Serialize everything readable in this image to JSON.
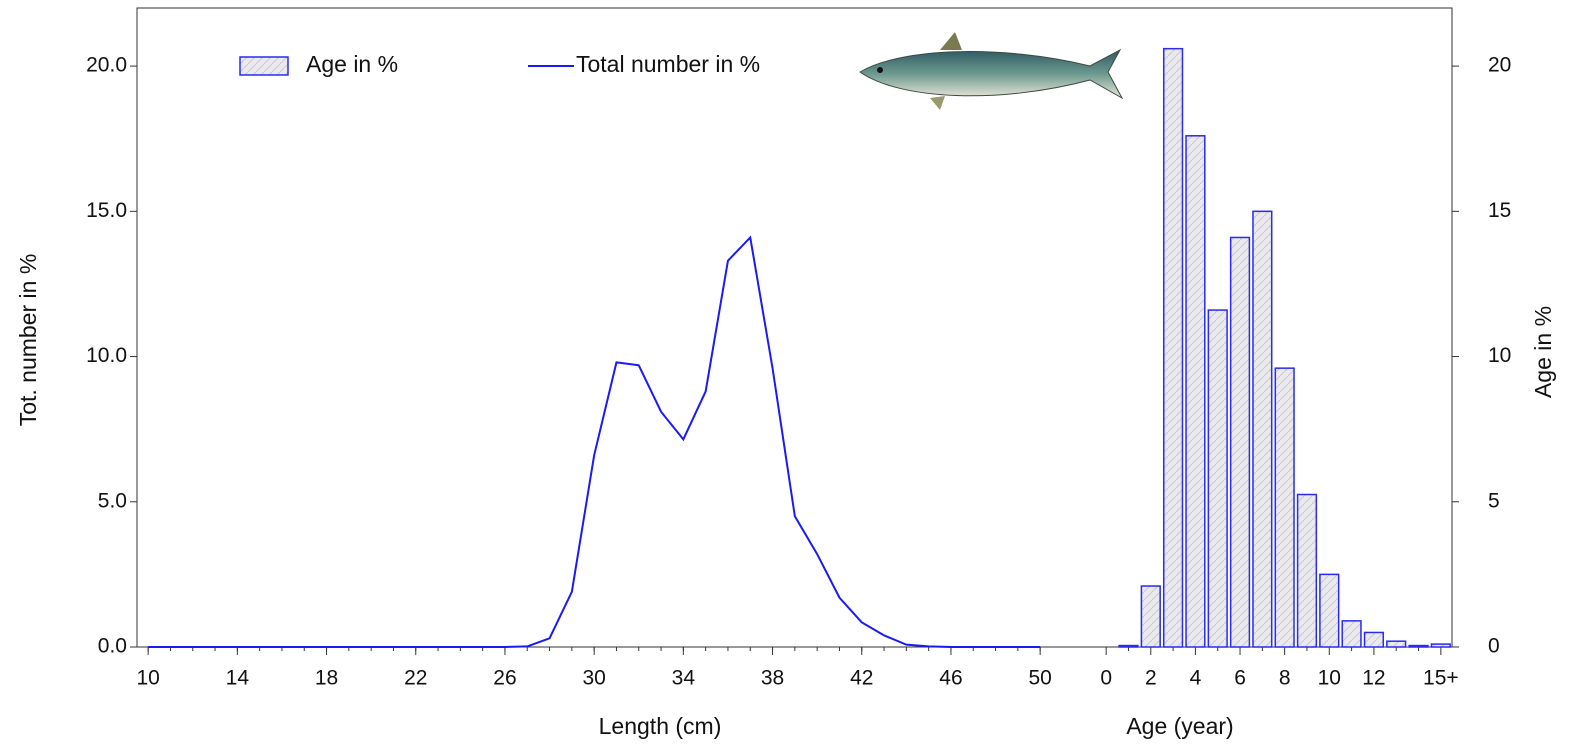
{
  "chart_data": {
    "type": "combo",
    "x_label": "Length (cm)",
    "x2_label": "Age (year)",
    "y_label": "Tot. number  in %",
    "y2_label": "Age in %",
    "legend": "upper left",
    "x": [
      10,
      11,
      12,
      13,
      14,
      15,
      16,
      17,
      18,
      19,
      20,
      21,
      22,
      23,
      24,
      25,
      26,
      27,
      28,
      29,
      30,
      31,
      32,
      33,
      34,
      35,
      36,
      37,
      38,
      39,
      40,
      41,
      42,
      43,
      44,
      45,
      46,
      47,
      48,
      49,
      50
    ],
    "xlim": [
      9.5,
      51.5
    ],
    "xticks": [
      10,
      14,
      18,
      22,
      26,
      30,
      34,
      38,
      42,
      46,
      50
    ],
    "categories": [
      "0",
      null,
      "2",
      null,
      "4",
      null,
      "6",
      null,
      "8",
      null,
      "10",
      null,
      "12",
      null,
      null,
      "15+"
    ],
    "ylim": [
      0,
      22
    ],
    "yticks": [
      {
        "value": 0,
        "label": "0.0"
      },
      {
        "value": 5,
        "label": "5.0"
      },
      {
        "value": 10,
        "label": "10.0"
      },
      {
        "value": 15,
        "label": "15.0"
      },
      {
        "value": 20,
        "label": "20.0"
      }
    ],
    "y2lim": [
      0,
      22
    ],
    "y2ticks": [
      0,
      5,
      10,
      15,
      20
    ],
    "series": [
      {
        "name": "Age in %",
        "type": "bar",
        "axis": "y2",
        "color": "#2a2af0",
        "values": [
          0,
          0.05,
          2.1,
          20.6,
          17.6,
          11.6,
          14.1,
          15.0,
          9.6,
          5.25,
          2.5,
          0.9,
          0.5,
          0.2,
          0.05,
          0.1
        ]
      },
      {
        "name": "Total number in %",
        "type": "line",
        "color": "#1a1af5",
        "values": [
          0,
          0,
          0,
          0,
          0,
          0,
          0,
          0,
          0,
          0,
          0,
          0,
          0,
          0,
          0,
          0,
          0,
          0.02,
          0.3,
          1.9,
          6.6,
          9.8,
          9.7,
          8.1,
          7.15,
          8.8,
          13.3,
          14.1,
          9.6,
          4.5,
          3.2,
          1.7,
          0.85,
          0.4,
          0.08,
          0.02,
          0,
          0,
          0,
          0,
          0
        ]
      }
    ]
  }
}
